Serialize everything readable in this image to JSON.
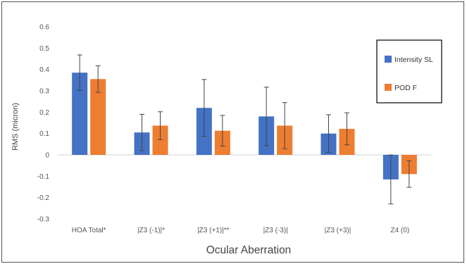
{
  "chart_data": {
    "type": "bar",
    "categories": [
      "HOA Total*",
      "|Z3 (-1)|*",
      "|Z3 (+1)|**",
      "|Z3 (-3)|",
      "|Z3 (+3)|",
      "Z4 (0)"
    ],
    "series": [
      {
        "name": "Intensity SL",
        "color": "#4472C4",
        "values": [
          0.385,
          0.105,
          0.22,
          0.18,
          0.1,
          -0.115
        ],
        "error": [
          0.083,
          0.085,
          0.133,
          0.137,
          0.088,
          0.115
        ]
      },
      {
        "name": "POD F",
        "color": "#ED7D31",
        "values": [
          0.355,
          0.137,
          0.113,
          0.137,
          0.122,
          -0.09
        ],
        "error": [
          0.062,
          0.065,
          0.072,
          0.108,
          0.075,
          0.062
        ]
      }
    ],
    "ylabel": "RMS (micron)",
    "xlabel": "Ocular Aberration",
    "ylim": [
      -0.3,
      0.6
    ],
    "yticks": [
      "0.6",
      "0.5",
      "0.4",
      "0.3",
      "0.2",
      "0.1",
      "0",
      "-0.1",
      "-0.2",
      "-0.3"
    ],
    "grid": false,
    "legend_position": "top-right"
  }
}
